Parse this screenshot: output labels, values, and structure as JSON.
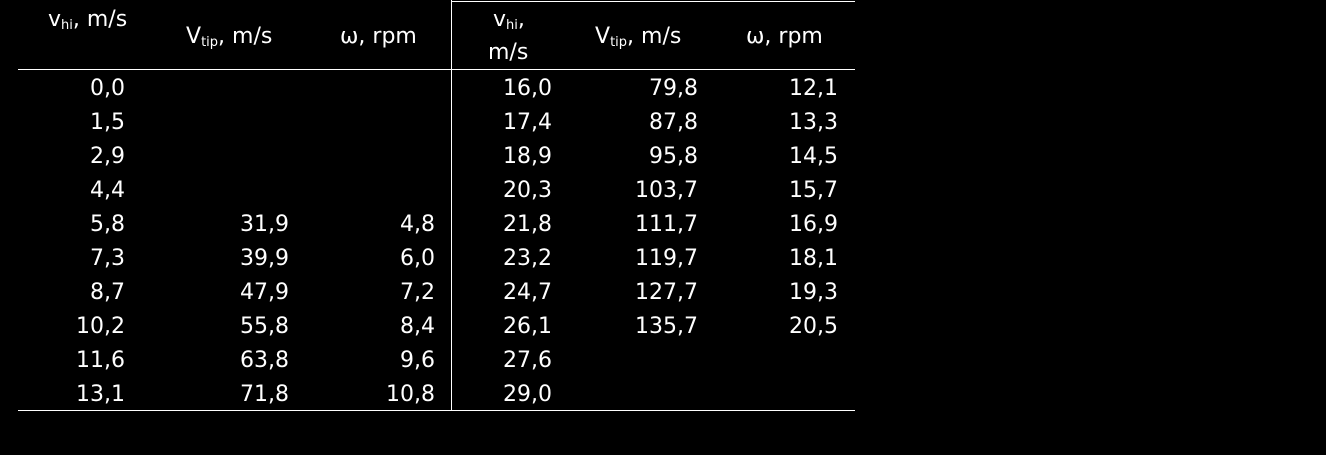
{
  "headers": {
    "col1_main": "v",
    "col1_sub": "hi",
    "col1_unit": ", m/s",
    "col2_main": "V",
    "col2_sub": "tip",
    "col2_unit": ", m/s",
    "col3": "ω, rpm",
    "col4_main": "v",
    "col4_sub": "hi",
    "col4_unit_line1": ",",
    "col4_unit_line2": "m/s",
    "col5_main": "V",
    "col5_sub": "tip",
    "col5_unit": ", m/s",
    "col6": "ω, rpm"
  },
  "rows": [
    [
      "0,0",
      "",
      "",
      "16,0",
      "79,8",
      "12,1"
    ],
    [
      "1,5",
      "",
      "",
      "17,4",
      "87,8",
      "13,3"
    ],
    [
      "2,9",
      "",
      "",
      "18,9",
      "95,8",
      "14,5"
    ],
    [
      "4,4",
      "",
      "",
      "20,3",
      "103,7",
      "15,7"
    ],
    [
      "5,8",
      "31,9",
      "4,8",
      "21,8",
      "111,7",
      "16,9"
    ],
    [
      "7,3",
      "39,9",
      "6,0",
      "23,2",
      "119,7",
      "18,1"
    ],
    [
      "8,7",
      "47,9",
      "7,2",
      "24,7",
      "127,7",
      "19,3"
    ],
    [
      "10,2",
      "55,8",
      "8,4",
      "26,1",
      "135,7",
      "20,5"
    ],
    [
      "11,6",
      "63,8",
      "9,6",
      "27,6",
      "",
      ""
    ],
    [
      "13,1",
      "71,8",
      "10,8",
      "29,0",
      "",
      ""
    ]
  ]
}
